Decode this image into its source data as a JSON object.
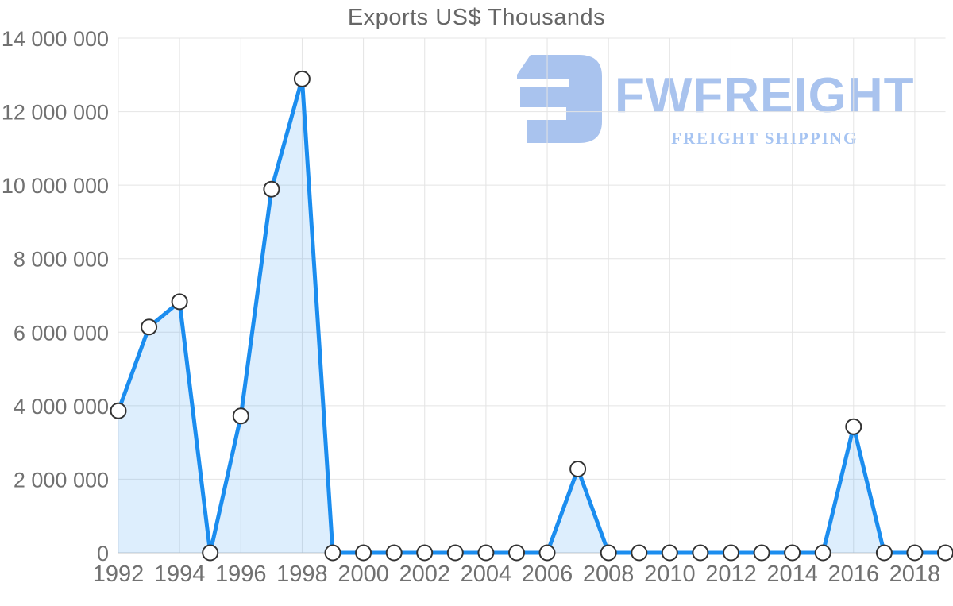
{
  "header": {
    "title": "Exports US$ Thousands"
  },
  "logo": {
    "name": "FWFREIGHT",
    "subtitle": "FREIGHT SHIPPING",
    "color": "#a9c3ee",
    "subtitle_color": "#a6c4f2"
  },
  "chart_data": {
    "type": "area",
    "title": "Exports US$ Thousands",
    "xlabel": "",
    "ylabel": "",
    "legend": "none",
    "grid": true,
    "xlim": [
      1992,
      2019
    ],
    "ylim": [
      0,
      14000000
    ],
    "x": [
      1992,
      1993,
      1994,
      1995,
      1996,
      1997,
      1998,
      1999,
      2000,
      2001,
      2002,
      2003,
      2004,
      2005,
      2006,
      2007,
      2008,
      2009,
      2010,
      2011,
      2012,
      2013,
      2014,
      2015,
      2016,
      2017,
      2018,
      2019
    ],
    "values": [
      3860000,
      6140000,
      6830000,
      0,
      3720000,
      9890000,
      12890000,
      0,
      0,
      0,
      0,
      0,
      0,
      0,
      0,
      2280000,
      0,
      0,
      0,
      0,
      0,
      0,
      0,
      0,
      3430000,
      0,
      0,
      0
    ],
    "x_ticks": [
      {
        "value": 1992,
        "label": "1992"
      },
      {
        "value": 1994,
        "label": "1994"
      },
      {
        "value": 1996,
        "label": "1996"
      },
      {
        "value": 1998,
        "label": "1998"
      },
      {
        "value": 2000,
        "label": "2000"
      },
      {
        "value": 2002,
        "label": "2002"
      },
      {
        "value": 2004,
        "label": "2004"
      },
      {
        "value": 2006,
        "label": "2006"
      },
      {
        "value": 2008,
        "label": "2008"
      },
      {
        "value": 2010,
        "label": "2010"
      },
      {
        "value": 2012,
        "label": "2012"
      },
      {
        "value": 2014,
        "label": "2014"
      },
      {
        "value": 2016,
        "label": "2016"
      },
      {
        "value": 2018,
        "label": "2018"
      }
    ],
    "y_ticks": [
      {
        "value": 0,
        "label": "0"
      },
      {
        "value": 2000000,
        "label": "2 000 000"
      },
      {
        "value": 4000000,
        "label": "4 000 000"
      },
      {
        "value": 6000000,
        "label": "6 000 000"
      },
      {
        "value": 8000000,
        "label": "8 000 000"
      },
      {
        "value": 10000000,
        "label": "10 000 000"
      },
      {
        "value": 12000000,
        "label": "12 000 000"
      },
      {
        "value": 14000000,
        "label": "14 000 000"
      }
    ],
    "colors": {
      "line": "#1b8def",
      "fill": "rgba(27,141,239,0.15)",
      "grid": "#e4e4e4",
      "axis": "#c9c9c9",
      "tick_text": "#717171",
      "title_text": "#666666",
      "marker_fill": "#ffffff",
      "marker_stroke": "#323232"
    }
  }
}
